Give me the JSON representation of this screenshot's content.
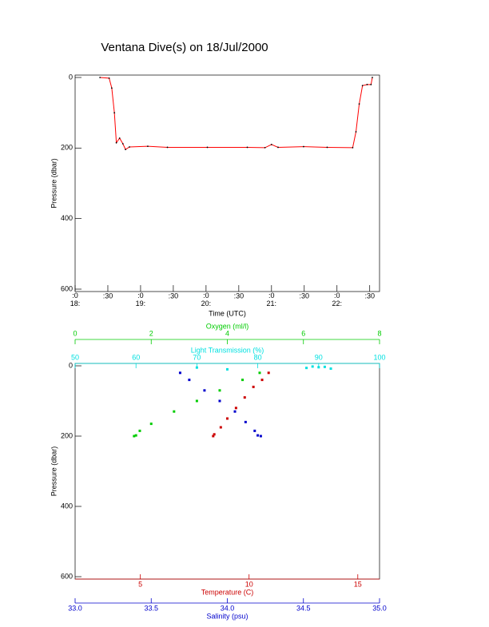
{
  "chart_data": [
    {
      "type": "line",
      "title": "Ventana Dive(s) on 18/Jul/2000",
      "xlabel": "Time (UTC)",
      "ylabel": "Pressure (dbar)",
      "line_color": "#ff0000",
      "marker_color": "#000000",
      "xlim": [
        18,
        22.65
      ],
      "xticks": [
        {
          "value": 18,
          "label": ":0\n18:"
        },
        {
          "value": 18.5,
          "label": ":30"
        },
        {
          "value": 19,
          "label": ":0\n19:"
        },
        {
          "value": 19.5,
          "label": ":30"
        },
        {
          "value": 20,
          "label": ":0\n20:"
        },
        {
          "value": 20.5,
          "label": ":30"
        },
        {
          "value": 21,
          "label": ":0\n21:"
        },
        {
          "value": 21.5,
          "label": ":30"
        },
        {
          "value": 22,
          "label": ":0\n22:"
        },
        {
          "value": 22.5,
          "label": ":30"
        }
      ],
      "ylim": [
        0,
        600
      ],
      "yticks": [
        0,
        200,
        400,
        600
      ],
      "x": [
        18.38,
        18.52,
        18.56,
        18.6,
        18.63,
        18.68,
        18.73,
        18.77,
        18.83,
        19.11,
        19.41,
        20.02,
        20.63,
        20.9,
        21.0,
        21.1,
        21.49,
        21.85,
        22.24,
        22.29,
        22.34,
        22.39,
        22.46,
        22.52,
        22.54
      ],
      "values": [
        0,
        2,
        30,
        100,
        185,
        172,
        188,
        204,
        197,
        195,
        198,
        198,
        198,
        199,
        190,
        198,
        196,
        198,
        199,
        154,
        75,
        23,
        20,
        20,
        0
      ]
    },
    {
      "type": "scatter",
      "ylabel": "Pressure (dbar)",
      "ylim": [
        0,
        600
      ],
      "yticks": [
        0,
        200,
        400,
        600
      ],
      "x_axes": [
        {
          "label": "Oxygen (ml/l)",
          "color": "#00cc00",
          "side": "top",
          "xlim": [
            0,
            8
          ],
          "xticks": [
            0,
            2,
            4,
            6,
            8
          ],
          "x": [
            4.85,
            4.4,
            3.8,
            3.2,
            2.6,
            2.0,
            1.7,
            1.6,
            1.55
          ],
          "values": [
            20,
            40,
            70,
            100,
            130,
            165,
            185,
            198,
            200
          ]
        },
        {
          "label": "Light Transmission (%)",
          "color": "#00e0e0",
          "side": "top",
          "xlim": [
            50,
            100
          ],
          "xticks": [
            50,
            60,
            70,
            80,
            90,
            100
          ],
          "x": [
            88,
            89,
            90,
            91,
            92,
            75,
            70
          ],
          "values": [
            6,
            2,
            4,
            3,
            8,
            10,
            5
          ]
        },
        {
          "label": "Temperature (C)",
          "color": "#cc0000",
          "side": "bottom",
          "xlim": [
            2,
            16
          ],
          "xticks": [
            5,
            10,
            15
          ],
          "x": [
            10.9,
            10.6,
            10.2,
            9.8,
            9.4,
            9.0,
            8.7,
            8.4,
            8.35
          ],
          "values": [
            20,
            40,
            60,
            90,
            120,
            150,
            175,
            195,
            200
          ]
        },
        {
          "label": "Salinity (psu)",
          "color": "#0000cc",
          "side": "bottom",
          "xlim": [
            33.0,
            35.0
          ],
          "xticks": [
            {
              "value": 33,
              "label": "33.0"
            },
            {
              "value": 33.5,
              "label": "33.5"
            },
            {
              "value": 34,
              "label": "34.0"
            },
            {
              "value": 34.5,
              "label": "34.5"
            },
            {
              "value": 35,
              "label": "35.0"
            }
          ],
          "x": [
            33.69,
            33.75,
            33.85,
            33.95,
            34.05,
            34.12,
            34.18,
            34.2,
            34.22
          ],
          "values": [
            20,
            40,
            70,
            100,
            130,
            160,
            185,
            198,
            200
          ]
        }
      ]
    }
  ]
}
